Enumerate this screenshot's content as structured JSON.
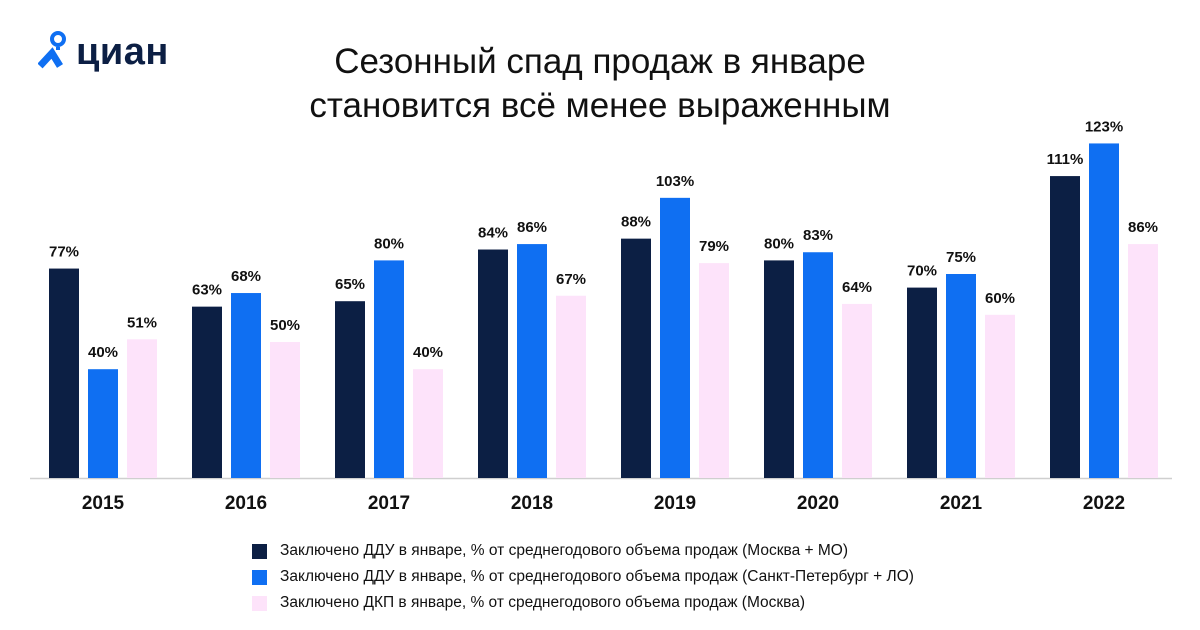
{
  "logo": {
    "text": "циан"
  },
  "chart_data": {
    "type": "bar",
    "title": "Сезонный спад продаж в январе становится всё менее выраженным",
    "title_lines": [
      "Сезонный спад продаж в январе",
      "становится всё менее выраженным"
    ],
    "categories": [
      "2015",
      "2016",
      "2017",
      "2018",
      "2019",
      "2020",
      "2021",
      "2022"
    ],
    "series": [
      {
        "name": "Заключено ДДУ в январе, % от среднегодового объема продаж (Москва + МО)",
        "color": "#0c1f44",
        "values": [
          77,
          63,
          65,
          84,
          88,
          80,
          70,
          111
        ]
      },
      {
        "name": "Заключено ДДУ в январе, % от среднегодового объема продаж (Санкт-Петербург + ЛО)",
        "color": "#0f6ff2",
        "values": [
          40,
          68,
          80,
          86,
          103,
          83,
          75,
          123
        ]
      },
      {
        "name": "Заключено ДКП в январе, % от среднегодового объема продаж (Москва)",
        "color": "#fde3fa",
        "values": [
          51,
          50,
          40,
          67,
          79,
          64,
          60,
          86
        ]
      }
    ],
    "value_suffix": "%",
    "ylim": [
      0,
      130
    ],
    "grid": false,
    "legend_position": "bottom"
  }
}
